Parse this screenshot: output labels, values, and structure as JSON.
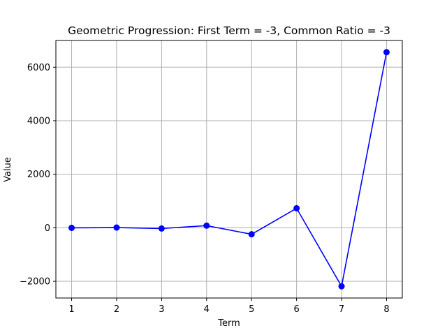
{
  "chart_data": {
    "type": "line",
    "title": "Geometric Progression: First Term = -3, Common Ratio = -3",
    "xlabel": "Term",
    "ylabel": "Value",
    "x": [
      1,
      2,
      3,
      4,
      5,
      6,
      7,
      8
    ],
    "series": [
      {
        "values": [
          -3,
          9,
          -27,
          81,
          -243,
          729,
          -2187,
          6561
        ],
        "color": "#0000ff",
        "marker": "circle"
      }
    ],
    "xticks": [
      "1",
      "2",
      "3",
      "4",
      "5",
      "6",
      "7",
      "8"
    ],
    "yticks": [
      -2000,
      0,
      2000,
      4000,
      6000
    ],
    "ytick_labels": [
      "−2000",
      "0",
      "2000",
      "4000",
      "6000"
    ],
    "xlim": [
      0.65,
      8.35
    ],
    "ylim": [
      -2624.4,
      6998.4
    ],
    "grid": true,
    "grid_color": "#b0b0b0"
  }
}
